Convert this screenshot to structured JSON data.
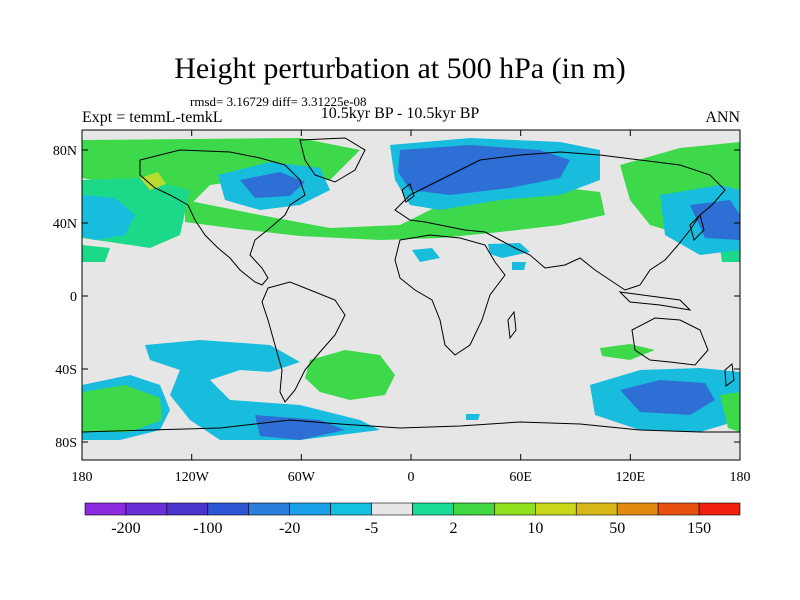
{
  "title": "Height perturbation at 500 hPa (in m)",
  "stats": "rmsd= 3.16729 diff= 3.31225e-08",
  "left_subtitle": "Expt = temmL-temkL",
  "center_subtitle": "10.5kyr BP - 10.5kyr BP",
  "right_subtitle": "ANN",
  "lat_labels": [
    "80N",
    "40N",
    "0",
    "40S",
    "80S"
  ],
  "lon_labels": [
    "180",
    "120W",
    "60W",
    "0",
    "60E",
    "120E",
    "180"
  ],
  "colorbar": {
    "labels": [
      "-200",
      "-100",
      "-20",
      "-5",
      "2",
      "10",
      "50",
      "150"
    ],
    "colors": [
      "#8a2be2",
      "#6a30d8",
      "#4a35cc",
      "#2f55d4",
      "#2a7fdc",
      "#1aa0e8",
      "#14c0e0",
      "#e6e6e6",
      "#1adc96",
      "#40d840",
      "#90e020",
      "#c8d818",
      "#d8b818",
      "#e08a10",
      "#e85010",
      "#f02010"
    ]
  },
  "map": {
    "background": "#e6e6e6",
    "colors": {
      "green": "#3ed94a",
      "teal": "#1cd98a",
      "cyan": "#18bcdc",
      "blue": "#2a8ade",
      "deep_blue": "#2e6fd6",
      "yellow": "#b8dc30"
    }
  }
}
